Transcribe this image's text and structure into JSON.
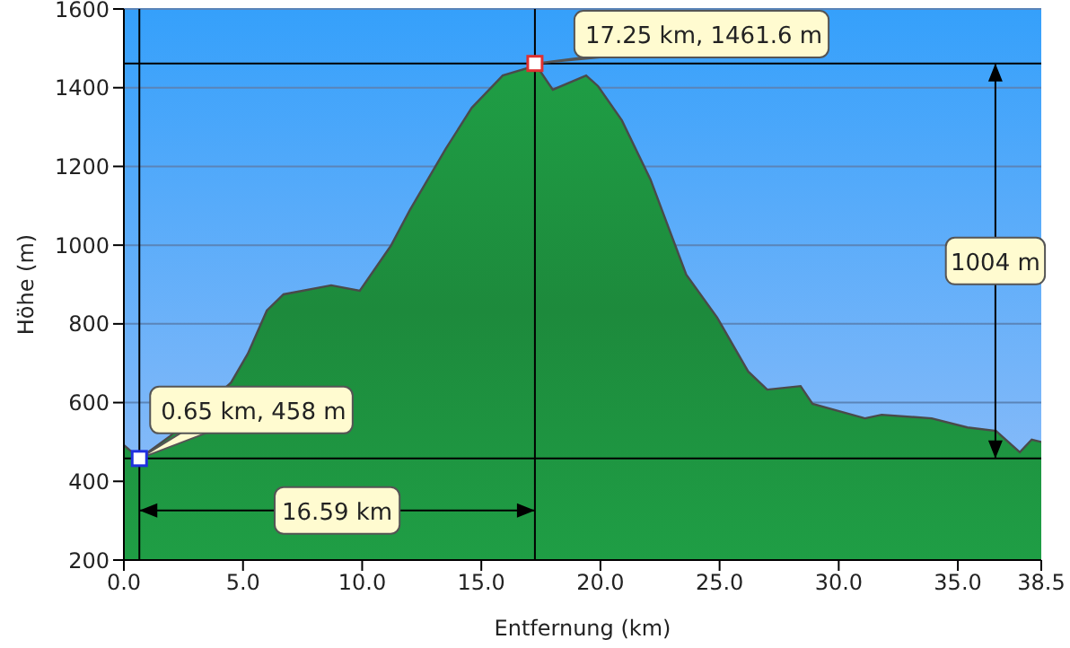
{
  "chart_data": {
    "type": "area",
    "xlabel": "Entfernung   (km)",
    "ylabel": "Höhe (m)",
    "x": [
      0,
      0.65,
      1.94,
      4.5,
      5.2,
      6.0,
      6.7,
      8.7,
      9.9,
      11.2,
      12.0,
      13.5,
      14.6,
      15.9,
      16.9,
      17.25,
      18.0,
      19.4,
      19.9,
      20.9,
      22.1,
      23.6,
      24.9,
      26.2,
      27.0,
      28.4,
      28.9,
      31.1,
      31.8,
      33.9,
      35.4,
      36.6,
      37.6,
      38.1,
      38.5
    ],
    "series": [
      {
        "color": "#1f9e45",
        "values": [
          492,
          458,
          515,
          651,
          724,
          834,
          875,
          898,
          884,
          998,
          1089,
          1244,
          1349,
          1431,
          1449,
          1461.6,
          1395,
          1431,
          1404,
          1317,
          1167,
          925,
          816,
          679,
          633,
          642,
          597,
          560,
          569,
          560,
          537,
          528,
          474,
          506,
          500
        ]
      }
    ],
    "xlim": [
      0,
      38.5
    ],
    "xticks": [
      {
        "value": 0,
        "label": "0.0"
      },
      {
        "value": 5,
        "label": "5.0"
      },
      {
        "value": 10,
        "label": "10.0"
      },
      {
        "value": 15,
        "label": "15.0"
      },
      {
        "value": 20,
        "label": "20.0"
      },
      {
        "value": 25,
        "label": "25.0"
      },
      {
        "value": 30,
        "label": "30.0"
      },
      {
        "value": 35,
        "label": "35.0"
      },
      38.5
    ],
    "ylim": [
      200,
      1600
    ],
    "yticks": [
      200,
      400,
      600,
      800,
      1000,
      1200,
      1400,
      1600
    ],
    "grid": "y",
    "legend": false,
    "ref_lines": [
      {
        "axis": "x",
        "value": 0.65,
        "color": "#000000"
      },
      {
        "axis": "x",
        "value": 17.25,
        "color": "#000000"
      },
      {
        "axis": "y",
        "value": 458,
        "color": "#000000"
      },
      {
        "axis": "y",
        "value": 1461.6,
        "color": "#000000"
      }
    ],
    "annotations": [
      {
        "text": "0.65 km, 458 m",
        "x": 0.65,
        "y": 458
      },
      {
        "text": "17.25 km, 1461.6 m",
        "x": 17.25,
        "y": 1461.6
      },
      "16.59 km",
      "1004 m"
    ]
  }
}
